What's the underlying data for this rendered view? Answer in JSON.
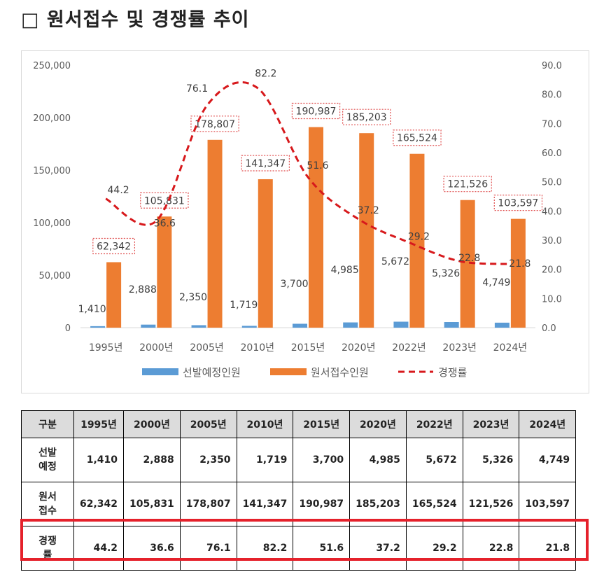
{
  "page_title": "□ 원서접수 및 경쟁률 추이",
  "colors": {
    "bar_seats": "#5b9bd5",
    "bar_apps": "#ed7d31",
    "line_rate": "#d7191c",
    "label_box": "#e05050",
    "highlight": "#e5212b"
  },
  "chart_data": {
    "type": "bar",
    "categories": [
      "1995년",
      "2000년",
      "2005년",
      "2010년",
      "2015년",
      "2020년",
      "2022년",
      "2023년",
      "2024년"
    ],
    "series": [
      {
        "name": "선발예정인원",
        "kind": "bar",
        "axis": "left",
        "values": [
          1410,
          2888,
          2350,
          1719,
          3700,
          4985,
          5672,
          5326,
          4749
        ],
        "labels": [
          "1,410",
          "2,888",
          "2,350",
          "1,719",
          "3,700",
          "4,985",
          "5,672",
          "5,326",
          "4,749"
        ]
      },
      {
        "name": "원서접수인원",
        "kind": "bar",
        "axis": "left",
        "values": [
          62342,
          105831,
          178807,
          141347,
          190987,
          185203,
          165524,
          121526,
          103597
        ],
        "labels": [
          "62,342",
          "105,831",
          "178,807",
          "141,347",
          "190,987",
          "185,203",
          "165,524",
          "121,526",
          "103,597"
        ]
      },
      {
        "name": "경쟁률",
        "kind": "line",
        "style": "dashed",
        "axis": "right",
        "values": [
          44.2,
          36.6,
          76.1,
          82.2,
          51.6,
          37.2,
          29.2,
          22.8,
          21.8
        ],
        "labels": [
          "44.2",
          "36.6",
          "76.1",
          "82.2",
          "51.6",
          "37.2",
          "29.2",
          "22.8",
          "21.8"
        ]
      }
    ],
    "y_left": {
      "range": [
        0,
        250000
      ],
      "ticks": [
        "0",
        "50,000",
        "100,000",
        "150,000",
        "200,000",
        "250,000"
      ]
    },
    "y_right": {
      "range": [
        0,
        90
      ],
      "ticks": [
        "0.0",
        "10.0",
        "20.0",
        "30.0",
        "40.0",
        "50.0",
        "60.0",
        "70.0",
        "80.0",
        "90.0"
      ]
    },
    "legend_position": "bottom",
    "grid": false
  },
  "table": {
    "headers": [
      "구분",
      "1995년",
      "2000년",
      "2005년",
      "2010년",
      "2015년",
      "2020년",
      "2022년",
      "2023년",
      "2024년"
    ],
    "rows": [
      {
        "label": [
          "선발",
          "예정"
        ],
        "values": [
          "1,410",
          "2,888",
          "2,350",
          "1,719",
          "3,700",
          "4,985",
          "5,672",
          "5,326",
          "4,749"
        ]
      },
      {
        "label": [
          "원서",
          "접수"
        ],
        "values": [
          "62,342",
          "105,831",
          "178,807",
          "141,347",
          "190,987",
          "185,203",
          "165,524",
          "121,526",
          "103,597"
        ]
      },
      {
        "label": [
          "경쟁",
          "률"
        ],
        "values": [
          "44.2",
          "36.6",
          "76.1",
          "82.2",
          "51.6",
          "37.2",
          "29.2",
          "22.8",
          "21.8"
        ]
      }
    ]
  }
}
